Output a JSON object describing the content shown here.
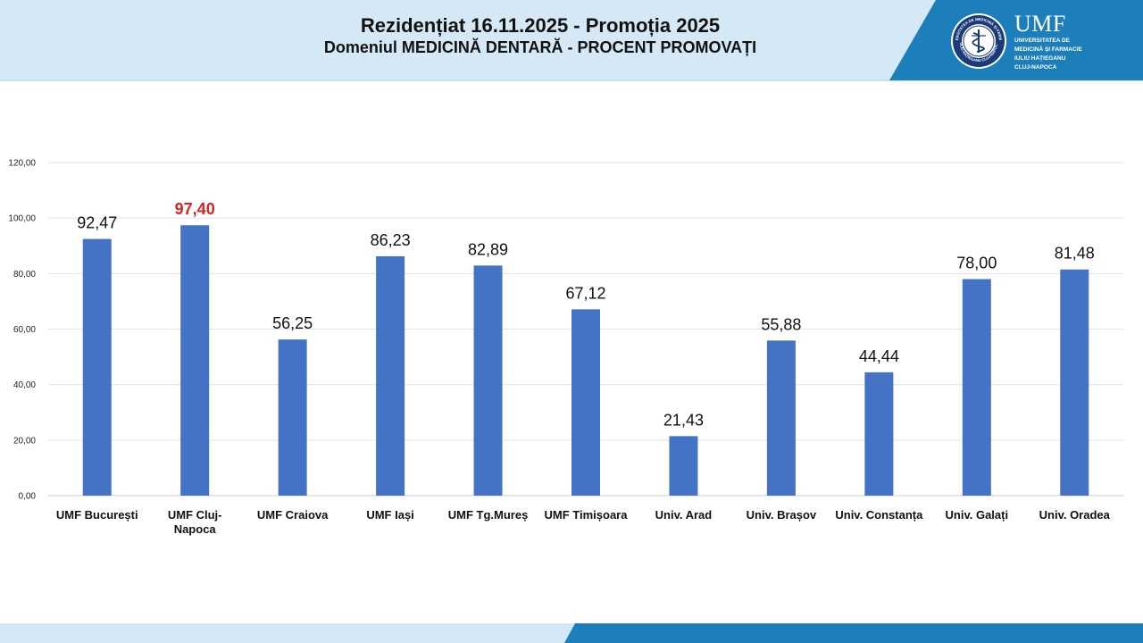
{
  "header": {
    "title": "Rezidențiat 16.11.2025 - Promoția 2025",
    "subtitle": "Domeniul MEDICINĂ DENTARĂ  -  PROCENT PROMOVAȚI"
  },
  "logo": {
    "abbrev": "UMF",
    "line1": "Universitatea de",
    "line2": "Medicină și Farmacie",
    "line3": "Iuliu Hațieganu",
    "line4": "Cluj-Napoca",
    "seal_top_text": "UNIVERSITATEA DE MEDICINĂ ȘI FARMACIE",
    "seal_bottom_text": "IULIU HAȚIEGANU CLUJ-NAPOCA"
  },
  "colors": {
    "bar": "#4472c4",
    "highlight_label": "#e02020",
    "label": "#111111",
    "axis_text": "#222222",
    "grid": "#e3e3e3",
    "header_light": "#d4e9f5",
    "header_dark": "#1c7fba"
  },
  "chart_data": {
    "type": "bar",
    "title": "",
    "xlabel": "",
    "ylabel": "",
    "ylim": [
      0,
      120
    ],
    "y_ticks": [
      0,
      20,
      40,
      60,
      80,
      100,
      120
    ],
    "y_tick_labels": [
      "0,00",
      "20,00",
      "40,00",
      "60,00",
      "80,00",
      "100,00",
      "120,00"
    ],
    "grid": true,
    "legend": "none",
    "categories": [
      "UMF București",
      "UMF Cluj-Napoca",
      "UMF Craiova",
      "UMF Iași",
      "UMF Tg.Mureș",
      "UMF Timișoara",
      "Univ. Arad",
      "Univ. Brașov",
      "Univ. Constanța",
      "Univ. Galați",
      "Univ. Oradea"
    ],
    "category_lines": [
      [
        "UMF București"
      ],
      [
        "UMF Cluj-",
        "Napoca"
      ],
      [
        "UMF Craiova"
      ],
      [
        "UMF Iași"
      ],
      [
        "UMF Tg.Mureș"
      ],
      [
        "UMF Timișoara"
      ],
      [
        "Univ. Arad"
      ],
      [
        "Univ. Brașov"
      ],
      [
        "Univ. Constanța"
      ],
      [
        "Univ. Galați"
      ],
      [
        "Univ. Oradea"
      ]
    ],
    "values": [
      92.47,
      97.4,
      56.25,
      86.23,
      82.89,
      67.12,
      21.43,
      55.88,
      44.44,
      78.0,
      81.48
    ],
    "value_labels": [
      "92,47",
      "97,40",
      "56,25",
      "86,23",
      "82,89",
      "67,12",
      "21,43",
      "55,88",
      "44,44",
      "78,00",
      "81,48"
    ],
    "highlight_index": 1
  }
}
